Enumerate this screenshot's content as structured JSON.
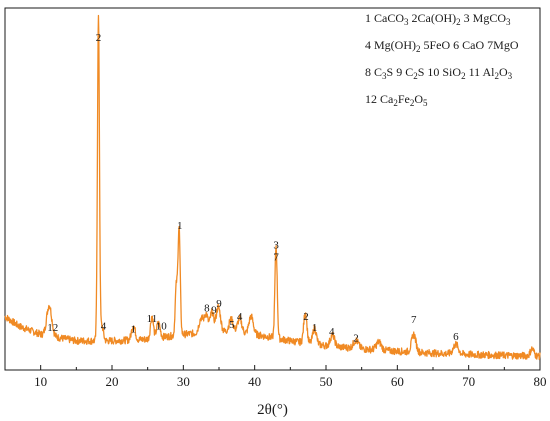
{
  "chart_data": {
    "type": "line",
    "xlabel": "2θ(°)",
    "ylabel": "",
    "xlim": [
      5,
      80
    ],
    "ylim": [
      0,
      1000
    ],
    "grid": false,
    "series_color": "#F08A24",
    "x_ticks": [
      "10",
      "20",
      "30",
      "40",
      "50",
      "60",
      "70",
      "80"
    ],
    "x_tick_values": [
      10,
      20,
      30,
      40,
      50,
      60,
      70,
      80
    ],
    "legend": {
      "placement": "top-right",
      "lines": [
        [
          {
            "t": "1 CaCO"
          },
          {
            "t": "3",
            "sub": true
          },
          {
            "t": " 2Ca(OH)"
          },
          {
            "t": "2",
            "sub": true
          },
          {
            "t": " 3 MgCO"
          },
          {
            "t": "3",
            "sub": true
          }
        ],
        [
          {
            "t": "4 Mg(OH)"
          },
          {
            "t": "2",
            "sub": true
          },
          {
            "t": " 5FeO 6 CaO 7MgO"
          }
        ],
        [
          {
            "t": "8 C"
          },
          {
            "t": "3",
            "sub": true
          },
          {
            "t": "S 9 C"
          },
          {
            "t": "2",
            "sub": true
          },
          {
            "t": "S 10 SiO"
          },
          {
            "t": "2",
            "sub": true
          },
          {
            "t": " 11 Al"
          },
          {
            "t": "2",
            "sub": true
          },
          {
            "t": "O"
          },
          {
            "t": "3",
            "sub": true
          }
        ],
        [
          {
            "t": "12  Ca"
          },
          {
            "t": "2",
            "sub": true
          },
          {
            "t": "Fe"
          },
          {
            "t": "2",
            "sub": true
          },
          {
            "t": "O"
          },
          {
            "t": "5",
            "sub": true
          }
        ]
      ]
    },
    "baseline": [
      [
        5,
        165
      ],
      [
        7,
        135
      ],
      [
        10,
        110
      ],
      [
        15,
        90
      ],
      [
        20,
        90
      ],
      [
        25,
        95
      ],
      [
        30,
        110
      ],
      [
        35,
        120
      ],
      [
        40,
        110
      ],
      [
        45,
        90
      ],
      [
        50,
        75
      ],
      [
        55,
        65
      ],
      [
        60,
        58
      ],
      [
        65,
        52
      ],
      [
        70,
        48
      ],
      [
        75,
        45
      ],
      [
        80,
        43
      ]
    ],
    "peaks": [
      {
        "x": 11.2,
        "y": 95,
        "w": 0.35
      },
      {
        "x": 18.1,
        "y": 1000,
        "w": 0.14
      },
      {
        "x": 18.6,
        "y": 45,
        "w": 0.2
      },
      {
        "x": 23.0,
        "y": 45,
        "w": 0.25
      },
      {
        "x": 25.6,
        "y": 70,
        "w": 0.2
      },
      {
        "x": 26.5,
        "y": 45,
        "w": 0.25
      },
      {
        "x": 29.0,
        "y": 145,
        "w": 0.15
      },
      {
        "x": 29.4,
        "y": 330,
        "w": 0.16
      },
      {
        "x": 32.5,
        "y": 45,
        "w": 0.3
      },
      {
        "x": 33.2,
        "y": 55,
        "w": 0.25
      },
      {
        "x": 34.0,
        "y": 60,
        "w": 0.25
      },
      {
        "x": 34.9,
        "y": 75,
        "w": 0.3
      },
      {
        "x": 36.7,
        "y": 40,
        "w": 0.3
      },
      {
        "x": 37.9,
        "y": 45,
        "w": 0.3
      },
      {
        "x": 39.5,
        "y": 55,
        "w": 0.3
      },
      {
        "x": 43.0,
        "y": 285,
        "w": 0.16
      },
      {
        "x": 47.1,
        "y": 95,
        "w": 0.22
      },
      {
        "x": 48.4,
        "y": 50,
        "w": 0.25
      },
      {
        "x": 50.9,
        "y": 35,
        "w": 0.3
      },
      {
        "x": 54.2,
        "y": 25,
        "w": 0.35
      },
      {
        "x": 57.4,
        "y": 25,
        "w": 0.35
      },
      {
        "x": 62.3,
        "y": 55,
        "w": 0.3
      },
      {
        "x": 68.2,
        "y": 30,
        "w": 0.35
      },
      {
        "x": 78.9,
        "y": 22,
        "w": 0.25
      }
    ],
    "peak_labels": [
      {
        "text": "12",
        "x": 11.7,
        "y": 120
      },
      {
        "text": "2",
        "x": 18.1,
        "y": 1015
      },
      {
        "text": "4",
        "x": 18.8,
        "y": 125
      },
      {
        "text": "1",
        "x": 23.0,
        "y": 115
      },
      {
        "text": "11",
        "x": 25.6,
        "y": 148
      },
      {
        "text": "10",
        "x": 26.9,
        "y": 125
      },
      {
        "text": "1",
        "x": 29.5,
        "y": 435
      },
      {
        "text": "8",
        "x": 33.3,
        "y": 180
      },
      {
        "text": "9",
        "x": 34.3,
        "y": 175
      },
      {
        "text": "9",
        "x": 35.0,
        "y": 195
      },
      {
        "text": "5",
        "x": 36.8,
        "y": 130
      },
      {
        "text": "4",
        "x": 37.9,
        "y": 155
      },
      {
        "text": "3",
        "x": 43.0,
        "y": 375
      },
      {
        "text": "7",
        "x": 43.0,
        "y": 338
      },
      {
        "text": "2",
        "x": 47.2,
        "y": 155
      },
      {
        "text": "1",
        "x": 48.4,
        "y": 120
      },
      {
        "text": "4",
        "x": 50.8,
        "y": 108
      },
      {
        "text": "2",
        "x": 54.2,
        "y": 88
      },
      {
        "text": "7",
        "x": 62.3,
        "y": 145
      },
      {
        "text": "6",
        "x": 68.2,
        "y": 92
      }
    ]
  }
}
